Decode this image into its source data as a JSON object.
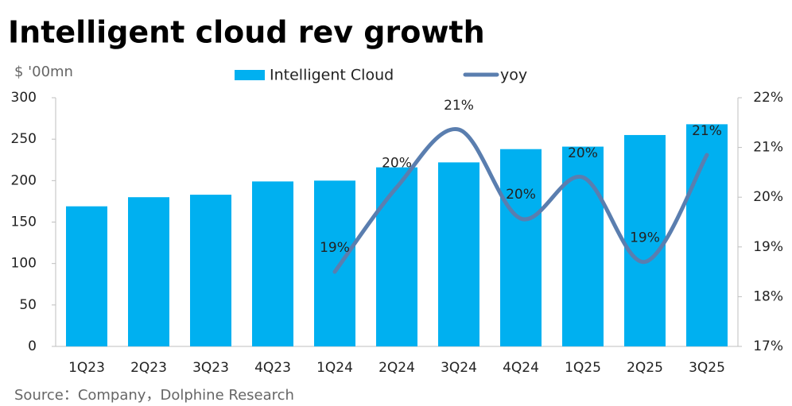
{
  "chart_data": {
    "type": "bar_line",
    "title": "Intelligent cloud rev growth",
    "y_label": "$ '00mn",
    "source": "Source：Company，Dolphine Research",
    "categories": [
      "1Q23",
      "2Q23",
      "3Q23",
      "4Q23",
      "1Q24",
      "2Q24",
      "3Q24",
      "4Q24",
      "1Q25",
      "2Q25",
      "3Q25"
    ],
    "series": [
      {
        "name": "Intelligent Cloud",
        "color": "#00b0f0",
        "type": "bar",
        "values": [
          169,
          180,
          183,
          199,
          200,
          216,
          222,
          238,
          241,
          255,
          268
        ]
      },
      {
        "name": "yoy",
        "color": "#5a7eaf",
        "type": "line",
        "axis": "y2",
        "values": [
          null,
          null,
          null,
          null,
          18.5,
          20.2,
          21.36,
          19.57,
          20.4,
          18.7,
          20.85
        ],
        "value_labels": [
          null,
          null,
          null,
          null,
          "19%",
          "20%",
          "21%",
          "20%",
          "20%",
          "19%",
          "21%"
        ]
      }
    ],
    "ylim": [
      0,
      300
    ],
    "yticks": [
      0,
      50,
      100,
      150,
      200,
      250,
      300
    ],
    "y2lim": [
      17,
      22
    ],
    "y2ticks": [
      {
        "value": 17,
        "label": "17%"
      },
      {
        "value": 18,
        "label": "18%"
      },
      {
        "value": 19,
        "label": "19%"
      },
      {
        "value": 20,
        "label": "20%"
      },
      {
        "value": 21,
        "label": "21%"
      },
      {
        "value": 22,
        "label": "22%"
      }
    ]
  }
}
